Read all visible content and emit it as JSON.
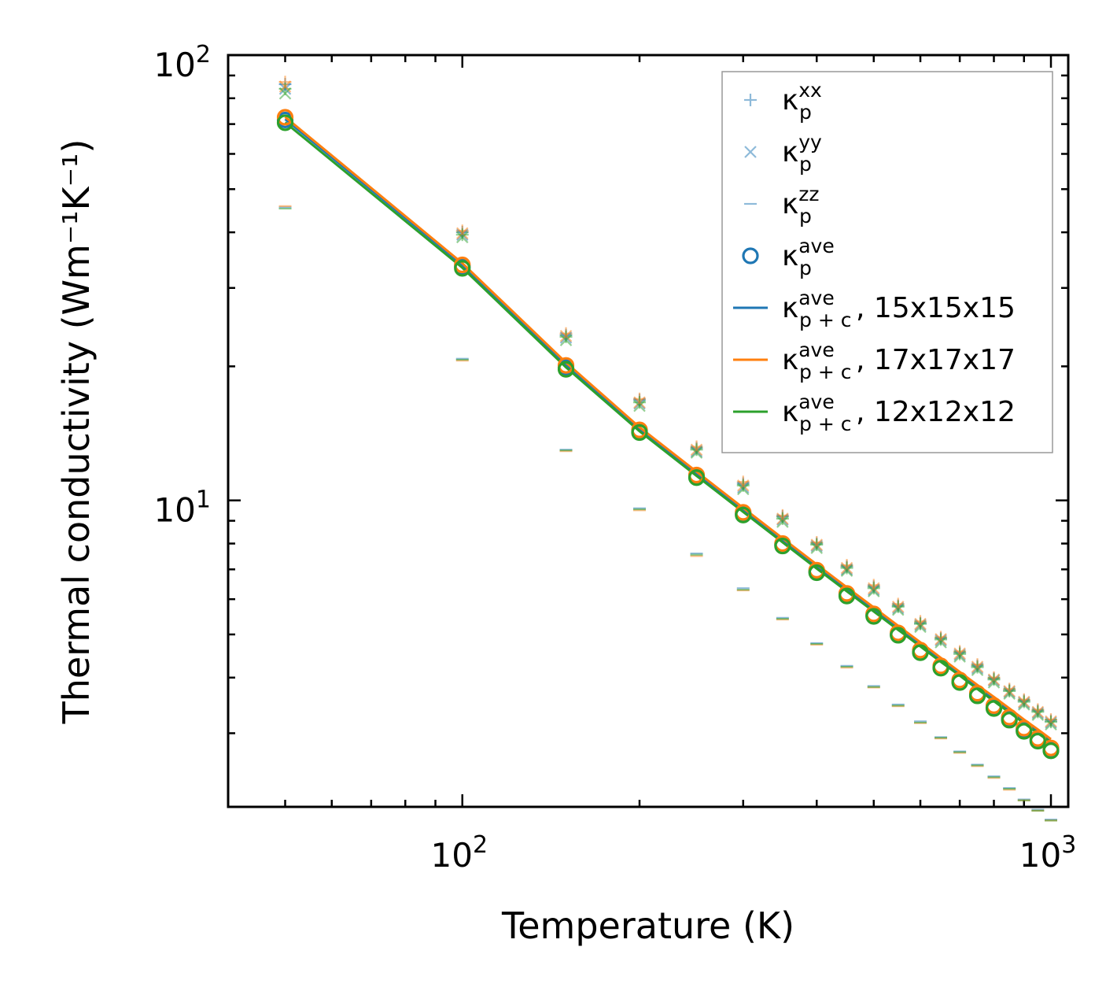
{
  "chart_data": {
    "type": "scatter",
    "title": "",
    "xlabel": "Temperature (K)",
    "ylabel": "Thermal conductivity (Wm⁻¹K⁻¹)",
    "xscale": "log",
    "yscale": "log",
    "xlim": [
      40,
      1070
    ],
    "ylim": [
      2.05,
      100
    ],
    "x_ticks": [
      {
        "value": 100,
        "base": "10",
        "exp": "2"
      },
      {
        "value": 1000,
        "base": "10",
        "exp": "3"
      }
    ],
    "y_ticks": [
      {
        "value": 10,
        "base": "10",
        "exp": "1"
      },
      {
        "value": 100,
        "base": "10",
        "exp": "2"
      }
    ],
    "x": [
      50,
      100,
      150,
      200,
      250,
      300,
      350,
      400,
      450,
      500,
      550,
      600,
      650,
      700,
      750,
      800,
      850,
      900,
      950,
      1000
    ],
    "series": [
      {
        "name": "kxx_15",
        "color": "#1f77b4",
        "marker": "plus",
        "values": [
          86,
          40,
          23.5,
          16.8,
          13.1,
          10.9,
          9.2,
          8.0,
          7.1,
          6.4,
          5.8,
          5.3,
          4.9,
          4.55,
          4.25,
          3.98,
          3.75,
          3.55,
          3.37,
          3.2
        ]
      },
      {
        "name": "kxx_17",
        "color": "#ff7f0e",
        "marker": "plus",
        "values": [
          87,
          40.3,
          23.7,
          16.9,
          13.2,
          11.0,
          9.25,
          8.05,
          7.15,
          6.45,
          5.85,
          5.35,
          4.93,
          4.58,
          4.28,
          4.0,
          3.77,
          3.57,
          3.39,
          3.22
        ]
      },
      {
        "name": "kxx_12",
        "color": "#2ca02c",
        "marker": "plus",
        "values": [
          84,
          39.5,
          23.3,
          16.6,
          13.0,
          10.8,
          9.1,
          7.95,
          7.05,
          6.35,
          5.77,
          5.28,
          4.87,
          4.52,
          4.22,
          3.96,
          3.73,
          3.53,
          3.35,
          3.18
        ]
      },
      {
        "name": "kyy_15",
        "color": "#1f77b4",
        "marker": "x",
        "values": [
          84,
          39.5,
          23.2,
          16.5,
          12.9,
          10.7,
          9.05,
          7.9,
          7.0,
          6.3,
          5.73,
          5.25,
          4.85,
          4.5,
          4.2,
          3.94,
          3.71,
          3.51,
          3.33,
          3.17
        ]
      },
      {
        "name": "kyy_17",
        "color": "#ff7f0e",
        "marker": "x",
        "values": [
          85,
          39.8,
          23.4,
          16.6,
          13.0,
          10.8,
          9.1,
          7.95,
          7.05,
          6.35,
          5.77,
          5.28,
          4.88,
          4.53,
          4.23,
          3.96,
          3.73,
          3.53,
          3.35,
          3.19
        ]
      },
      {
        "name": "kyy_12",
        "color": "#2ca02c",
        "marker": "x",
        "values": [
          82,
          39.0,
          22.9,
          16.3,
          12.8,
          10.6,
          8.95,
          7.82,
          6.95,
          6.25,
          5.68,
          5.2,
          4.8,
          4.46,
          4.16,
          3.9,
          3.68,
          3.48,
          3.3,
          3.14
        ]
      },
      {
        "name": "kzz_15",
        "color": "#1f77b4",
        "marker": "dash",
        "values": [
          45.5,
          20.8,
          13.0,
          9.6,
          7.6,
          6.35,
          5.45,
          4.78,
          4.25,
          3.83,
          3.48,
          3.19,
          2.94,
          2.73,
          2.55,
          2.4,
          2.26,
          2.13,
          2.02,
          1.92
        ]
      },
      {
        "name": "kzz_17",
        "color": "#ff7f0e",
        "marker": "dash",
        "values": [
          45.8,
          20.6,
          12.9,
          9.5,
          7.5,
          6.28,
          5.4,
          4.74,
          4.21,
          3.8,
          3.45,
          3.16,
          2.92,
          2.71,
          2.53,
          2.38,
          2.24,
          2.12,
          2.01,
          1.91
        ]
      },
      {
        "name": "kzz_12",
        "color": "#2ca02c",
        "marker": "dash",
        "values": [
          45.2,
          20.7,
          12.95,
          9.55,
          7.55,
          6.3,
          5.42,
          4.76,
          4.23,
          3.81,
          3.46,
          3.17,
          2.93,
          2.72,
          2.54,
          2.39,
          2.25,
          2.12,
          2.01,
          1.91
        ]
      },
      {
        "name": "kave_15",
        "color": "#1f77b4",
        "marker": "circle",
        "values": [
          71.5,
          33.5,
          19.9,
          14.3,
          11.3,
          9.32,
          7.95,
          6.92,
          6.14,
          5.52,
          5.0,
          4.58,
          4.22,
          3.92,
          3.66,
          3.43,
          3.23,
          3.05,
          2.9,
          2.76
        ]
      },
      {
        "name": "kave_17",
        "color": "#ff7f0e",
        "marker": "circle",
        "values": [
          72.5,
          33.8,
          20.1,
          14.4,
          11.4,
          9.4,
          8.0,
          6.97,
          6.18,
          5.56,
          5.04,
          4.61,
          4.25,
          3.95,
          3.69,
          3.46,
          3.26,
          3.08,
          2.92,
          2.78
        ]
      },
      {
        "name": "kave_12",
        "color": "#2ca02c",
        "marker": "circle",
        "values": [
          70.5,
          33.2,
          19.7,
          14.2,
          11.25,
          9.27,
          7.9,
          6.88,
          6.1,
          5.49,
          4.98,
          4.55,
          4.2,
          3.9,
          3.64,
          3.41,
          3.21,
          3.03,
          2.88,
          2.74
        ]
      },
      {
        "name": "kpc_15",
        "color": "#1f77b4",
        "marker": "line",
        "values": [
          71.8,
          33.8,
          20.2,
          14.5,
          11.5,
          9.55,
          8.15,
          7.12,
          6.32,
          5.7,
          5.18,
          4.75,
          4.39,
          4.08,
          3.81,
          3.58,
          3.37,
          3.19,
          3.03,
          2.88
        ]
      },
      {
        "name": "kpc_17",
        "color": "#ff7f0e",
        "marker": "line",
        "values": [
          72.6,
          34.1,
          20.4,
          14.6,
          11.6,
          9.62,
          8.22,
          7.18,
          6.38,
          5.75,
          5.23,
          4.8,
          4.43,
          4.12,
          3.85,
          3.62,
          3.41,
          3.22,
          3.06,
          2.91
        ]
      },
      {
        "name": "kpc_12",
        "color": "#2ca02c",
        "marker": "line",
        "values": [
          70.6,
          33.3,
          19.9,
          14.3,
          11.35,
          9.42,
          8.05,
          7.03,
          6.25,
          5.63,
          5.12,
          4.7,
          4.34,
          4.04,
          3.77,
          3.54,
          3.34,
          3.16,
          3.0,
          2.86
        ]
      }
    ],
    "legend": {
      "placement": "top-right",
      "entries": [
        {
          "marker": "plus",
          "color": "#1f77b4",
          "alpha": 0.5,
          "symbol": "κ",
          "sub": "p",
          "sup": "xx",
          "suffix": ""
        },
        {
          "marker": "x",
          "color": "#1f77b4",
          "alpha": 0.5,
          "symbol": "κ",
          "sub": "p",
          "sup": "yy",
          "suffix": ""
        },
        {
          "marker": "dash",
          "color": "#1f77b4",
          "alpha": 0.5,
          "symbol": "κ",
          "sub": "p",
          "sup": "zz",
          "suffix": ""
        },
        {
          "marker": "circle",
          "color": "#1f77b4",
          "alpha": 1,
          "symbol": "κ",
          "sub": "p",
          "sup": "ave",
          "suffix": ""
        },
        {
          "marker": "line",
          "color": "#1f77b4",
          "alpha": 1,
          "symbol": "κ",
          "sub": "p + c",
          "sup": "ave",
          "suffix": ", 15x15x15"
        },
        {
          "marker": "line",
          "color": "#ff7f0e",
          "alpha": 1,
          "symbol": "κ",
          "sub": "p + c",
          "sup": "ave",
          "suffix": ", 17x17x17"
        },
        {
          "marker": "line",
          "color": "#2ca02c",
          "alpha": 1,
          "symbol": "κ",
          "sub": "p + c",
          "sup": "ave",
          "suffix": ", 12x12x12"
        }
      ]
    }
  }
}
